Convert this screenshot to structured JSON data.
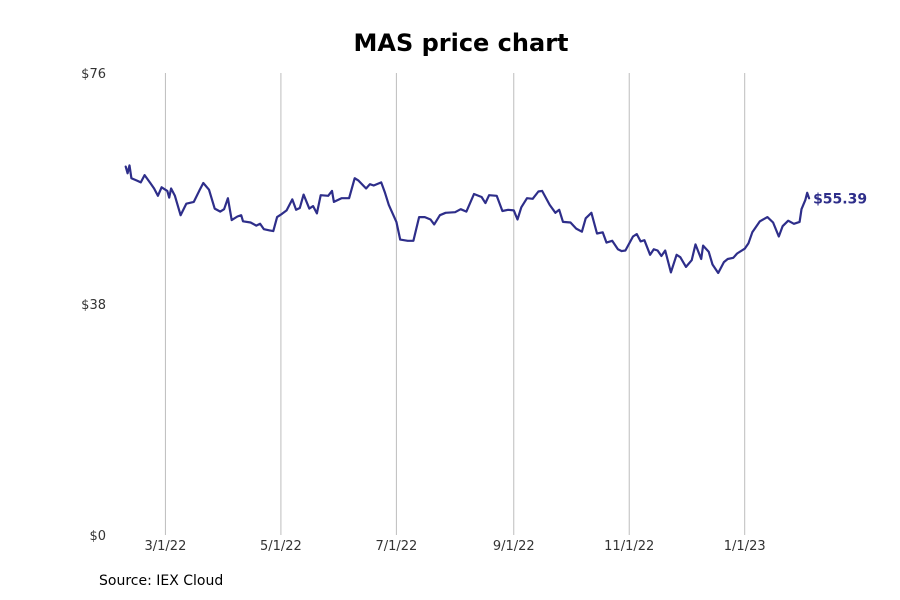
{
  "chart_data": {
    "type": "line",
    "title": "MAS price chart",
    "xlabel": "",
    "ylabel": "",
    "line_color": "#2e2e8a",
    "grid": "vertical",
    "x_range": [
      "2022-02-05",
      "2023-02-14"
    ],
    "ylim": [
      0,
      76
    ],
    "y_ticks": [
      {
        "value": 0,
        "label": "$0"
      },
      {
        "value": 38,
        "label": "$38"
      },
      {
        "value": 76,
        "label": "$76"
      }
    ],
    "x_ticks": [
      {
        "date": "2022-03-01",
        "label": "3/1/22"
      },
      {
        "date": "2022-05-01",
        "label": "5/1/22"
      },
      {
        "date": "2022-07-01",
        "label": "7/1/22"
      },
      {
        "date": "2022-09-01",
        "label": "9/1/22"
      },
      {
        "date": "2022-11-01",
        "label": "11/1/22"
      },
      {
        "date": "2023-01-01",
        "label": "1/1/23"
      }
    ],
    "end_label": "$55.39",
    "series": [
      {
        "points": [
          [
            "2022-02-08",
            60.6
          ],
          [
            "2022-02-09",
            59.5
          ],
          [
            "2022-02-10",
            60.8
          ],
          [
            "2022-02-11",
            58.7
          ],
          [
            "2022-02-14",
            58.3
          ],
          [
            "2022-02-16",
            58.0
          ],
          [
            "2022-02-18",
            59.2
          ],
          [
            "2022-02-21",
            57.9
          ],
          [
            "2022-02-23",
            57.0
          ],
          [
            "2022-02-25",
            55.8
          ],
          [
            "2022-02-27",
            57.2
          ],
          [
            "2022-03-02",
            56.6
          ],
          [
            "2022-03-03",
            55.5
          ],
          [
            "2022-03-04",
            57.0
          ],
          [
            "2022-03-06",
            55.8
          ],
          [
            "2022-03-09",
            52.6
          ],
          [
            "2022-03-12",
            54.5
          ],
          [
            "2022-03-16",
            54.8
          ],
          [
            "2022-03-19",
            56.7
          ],
          [
            "2022-03-21",
            57.9
          ],
          [
            "2022-03-24",
            56.8
          ],
          [
            "2022-03-27",
            53.7
          ],
          [
            "2022-03-30",
            53.2
          ],
          [
            "2022-04-01",
            53.6
          ],
          [
            "2022-04-03",
            55.4
          ],
          [
            "2022-04-05",
            51.8
          ],
          [
            "2022-04-08",
            52.4
          ],
          [
            "2022-04-10",
            52.6
          ],
          [
            "2022-04-11",
            51.6
          ],
          [
            "2022-04-15",
            51.4
          ],
          [
            "2022-04-18",
            50.9
          ],
          [
            "2022-04-20",
            51.2
          ],
          [
            "2022-04-22",
            50.3
          ],
          [
            "2022-04-25",
            50.1
          ],
          [
            "2022-04-27",
            50.0
          ],
          [
            "2022-04-29",
            52.3
          ],
          [
            "2022-05-01",
            52.7
          ],
          [
            "2022-05-04",
            53.4
          ],
          [
            "2022-05-07",
            55.2
          ],
          [
            "2022-05-09",
            53.5
          ],
          [
            "2022-05-11",
            53.8
          ],
          [
            "2022-05-13",
            56.0
          ],
          [
            "2022-05-16",
            53.7
          ],
          [
            "2022-05-18",
            54.1
          ],
          [
            "2022-05-20",
            52.9
          ],
          [
            "2022-05-22",
            55.9
          ],
          [
            "2022-05-26",
            55.8
          ],
          [
            "2022-05-28",
            56.6
          ],
          [
            "2022-05-29",
            54.8
          ],
          [
            "2022-06-02",
            55.4
          ],
          [
            "2022-06-06",
            55.4
          ],
          [
            "2022-06-09",
            58.7
          ],
          [
            "2022-06-11",
            58.3
          ],
          [
            "2022-06-15",
            57.0
          ],
          [
            "2022-06-17",
            57.7
          ],
          [
            "2022-06-19",
            57.5
          ],
          [
            "2022-06-23",
            58.0
          ],
          [
            "2022-06-25",
            56.3
          ],
          [
            "2022-06-27",
            54.3
          ],
          [
            "2022-07-01",
            51.5
          ],
          [
            "2022-07-03",
            48.6
          ],
          [
            "2022-07-07",
            48.4
          ],
          [
            "2022-07-10",
            48.4
          ],
          [
            "2022-07-13",
            52.3
          ],
          [
            "2022-07-16",
            52.3
          ],
          [
            "2022-07-19",
            51.9
          ],
          [
            "2022-07-21",
            51.1
          ],
          [
            "2022-07-24",
            52.6
          ],
          [
            "2022-07-27",
            53.0
          ],
          [
            "2022-08-01",
            53.1
          ],
          [
            "2022-08-04",
            53.6
          ],
          [
            "2022-08-07",
            53.2
          ],
          [
            "2022-08-11",
            56.1
          ],
          [
            "2022-08-15",
            55.6
          ],
          [
            "2022-08-17",
            54.6
          ],
          [
            "2022-08-19",
            55.9
          ],
          [
            "2022-08-23",
            55.8
          ],
          [
            "2022-08-26",
            53.3
          ],
          [
            "2022-08-29",
            53.5
          ],
          [
            "2022-09-01",
            53.4
          ],
          [
            "2022-09-03",
            51.9
          ],
          [
            "2022-09-05",
            53.9
          ],
          [
            "2022-09-08",
            55.4
          ],
          [
            "2022-09-11",
            55.3
          ],
          [
            "2022-09-14",
            56.5
          ],
          [
            "2022-09-16",
            56.6
          ],
          [
            "2022-09-20",
            54.3
          ],
          [
            "2022-09-23",
            53.0
          ],
          [
            "2022-09-25",
            53.5
          ],
          [
            "2022-09-27",
            51.5
          ],
          [
            "2022-10-01",
            51.4
          ],
          [
            "2022-10-04",
            50.4
          ],
          [
            "2022-10-07",
            49.9
          ],
          [
            "2022-10-09",
            52.1
          ],
          [
            "2022-10-12",
            53.0
          ],
          [
            "2022-10-15",
            49.6
          ],
          [
            "2022-10-18",
            49.8
          ],
          [
            "2022-10-20",
            48.1
          ],
          [
            "2022-10-23",
            48.4
          ],
          [
            "2022-10-26",
            47.0
          ],
          [
            "2022-10-28",
            46.7
          ],
          [
            "2022-10-30",
            46.8
          ],
          [
            "2022-11-03",
            49.1
          ],
          [
            "2022-11-05",
            49.5
          ],
          [
            "2022-11-07",
            48.3
          ],
          [
            "2022-11-09",
            48.5
          ],
          [
            "2022-11-12",
            46.1
          ],
          [
            "2022-11-14",
            47.0
          ],
          [
            "2022-11-16",
            46.8
          ],
          [
            "2022-11-18",
            45.9
          ],
          [
            "2022-11-20",
            46.8
          ],
          [
            "2022-11-23",
            43.2
          ],
          [
            "2022-11-26",
            46.1
          ],
          [
            "2022-11-28",
            45.7
          ],
          [
            "2022-12-01",
            44.1
          ],
          [
            "2022-12-04",
            45.2
          ],
          [
            "2022-12-06",
            47.8
          ],
          [
            "2022-12-09",
            45.4
          ],
          [
            "2022-12-10",
            47.6
          ],
          [
            "2022-12-13",
            46.6
          ],
          [
            "2022-12-15",
            44.5
          ],
          [
            "2022-12-18",
            43.1
          ],
          [
            "2022-12-21",
            44.9
          ],
          [
            "2022-12-23",
            45.4
          ],
          [
            "2022-12-26",
            45.6
          ],
          [
            "2022-12-28",
            46.3
          ],
          [
            "2023-01-01",
            47.1
          ],
          [
            "2023-01-03",
            48.0
          ],
          [
            "2023-01-05",
            49.8
          ],
          [
            "2023-01-09",
            51.6
          ],
          [
            "2023-01-13",
            52.3
          ],
          [
            "2023-01-16",
            51.4
          ],
          [
            "2023-01-19",
            49.1
          ],
          [
            "2023-01-21",
            50.8
          ],
          [
            "2023-01-24",
            51.7
          ],
          [
            "2023-01-27",
            51.2
          ],
          [
            "2023-01-30",
            51.5
          ],
          [
            "2023-01-31",
            53.6
          ],
          [
            "2023-02-02",
            55.1
          ],
          [
            "2023-02-03",
            56.3
          ],
          [
            "2023-02-04",
            55.39
          ]
        ]
      }
    ]
  },
  "source_text": "Source: IEX Cloud"
}
